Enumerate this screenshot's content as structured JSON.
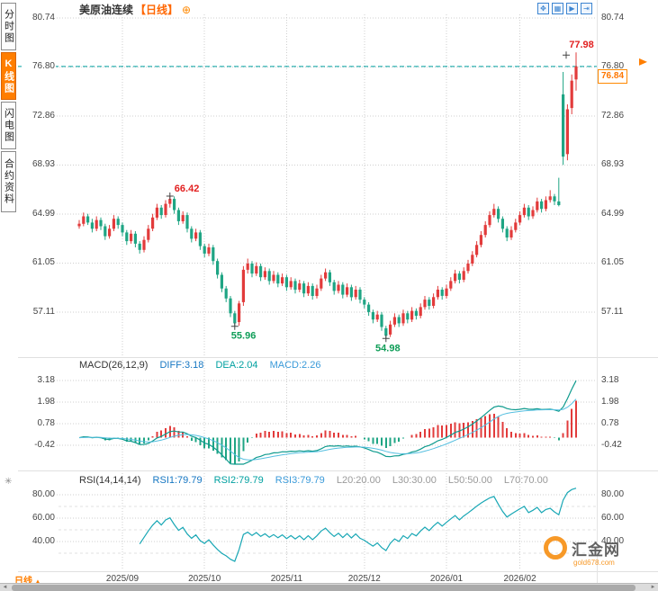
{
  "header": {
    "symbol": "美原油连续",
    "period": "【日线】",
    "settings_icon": "⊕",
    "toolbar": [
      {
        "name": "pan-tool-icon",
        "glyph": "✥"
      },
      {
        "name": "chart-type-icon",
        "glyph": "▦"
      },
      {
        "name": "zoom-tool-icon",
        "glyph": "▶"
      },
      {
        "name": "jump-latest-icon",
        "glyph": "⇥"
      }
    ]
  },
  "sidebar": {
    "tabs": [
      {
        "label": "分时图",
        "active": false
      },
      {
        "label": "K线图",
        "active": true
      },
      {
        "label": "闪电图",
        "active": false
      },
      {
        "label": "合约资料",
        "active": false
      }
    ]
  },
  "price_axis": {
    "ticks": [
      "80.74",
      "76.80",
      "72.86",
      "68.93",
      "64.99",
      "61.05",
      "57.11"
    ]
  },
  "current_price": {
    "value": "76.84"
  },
  "annotations": {
    "high": "77.98",
    "swing_high": "66.42",
    "swing_low1": "55.96",
    "swing_low2": "54.98"
  },
  "macd_panel": {
    "title": "MACD(26,12,9)",
    "diff": "DIFF:3.18",
    "dea": "DEA:2.04",
    "macd": "MACD:2.26",
    "ticks": [
      "3.18",
      "1.98",
      "0.78",
      "-0.42"
    ]
  },
  "rsi_panel": {
    "title": "RSI(14,14,14)",
    "rsi1": "RSI1:79.79",
    "rsi2": "RSI2:79.79",
    "rsi3": "RSI3:79.79",
    "l20": "L20:20.00",
    "l30": "L30:30.00",
    "l50": "L50:50.00",
    "l70": "L70:70.00",
    "ticks": [
      "80.00",
      "60.00",
      "40.00"
    ]
  },
  "time_axis": {
    "labels": [
      "2025/09",
      "2025/10",
      "2025/11",
      "2025/12",
      "2026/01",
      "2026/02"
    ],
    "period_label": "日线"
  },
  "watermark": {
    "site_name": "汇金网",
    "site_url": "gold678.com"
  },
  "colors": {
    "up": "#e23b3b",
    "down": "#1fa584",
    "accent_orange": "#ff7e00",
    "last_price_line": "#00a0a0",
    "grid": "#cfcfcf",
    "toolbar_blue": "#3d85d1",
    "annotation_red": "#e22020",
    "annotation_green": "#0e9d57"
  },
  "chart_data": {
    "type": "candlestick",
    "symbol": "美原油连续",
    "interval": "日线",
    "y_ticks": [
      80.74,
      76.8,
      72.86,
      68.93,
      64.99,
      61.05,
      57.11
    ],
    "macd_axis": [
      3.18,
      1.98,
      0.78,
      -0.42
    ],
    "rsi_axis": [
      80,
      60,
      40
    ],
    "rsi_levels": [
      70,
      50,
      30
    ],
    "x_month_ticks": [
      "2025/09",
      "2025/10",
      "2025/11",
      "2025/12",
      "2026/01",
      "2026/02"
    ],
    "month_tick_indices": [
      10,
      29,
      48,
      66,
      85,
      102
    ],
    "last_price": 76.84,
    "key_points": {
      "high": {
        "index": 115,
        "price": 77.98
      },
      "swing_high": {
        "index": 21,
        "price": 66.42
      },
      "low1": {
        "index": 36,
        "price": 55.96
      },
      "low2": {
        "index": 71,
        "price": 54.98
      }
    },
    "indicators": {
      "macd": {
        "params": [
          26,
          12,
          9
        ],
        "diff": 3.18,
        "dea": 2.04,
        "macd": 2.26
      },
      "rsi": {
        "params": [
          14,
          14,
          14
        ],
        "rsi1": 79.79,
        "rsi2": 79.79,
        "rsi3": 79.79,
        "levels": [
          20,
          30,
          50,
          70
        ]
      }
    },
    "candles": [
      [
        64.0,
        64.5,
        63.8,
        64.2
      ],
      [
        64.2,
        65.1,
        64.0,
        64.8
      ],
      [
        64.8,
        65.0,
        64.1,
        64.3
      ],
      [
        64.3,
        64.6,
        63.5,
        63.8
      ],
      [
        63.8,
        64.8,
        63.6,
        64.5
      ],
      [
        64.5,
        64.7,
        63.7,
        64.0
      ],
      [
        64.0,
        64.2,
        62.9,
        63.2
      ],
      [
        63.2,
        64.1,
        63.0,
        63.8
      ],
      [
        63.8,
        64.9,
        63.6,
        64.6
      ],
      [
        64.6,
        64.8,
        63.8,
        64.1
      ],
      [
        64.1,
        64.3,
        63.2,
        63.5
      ],
      [
        63.5,
        63.7,
        62.5,
        62.8
      ],
      [
        62.8,
        63.7,
        62.6,
        63.4
      ],
      [
        63.4,
        63.6,
        62.3,
        62.6
      ],
      [
        62.6,
        62.8,
        61.8,
        62.1
      ],
      [
        62.1,
        63.2,
        61.9,
        62.9
      ],
      [
        62.9,
        64.1,
        62.7,
        63.8
      ],
      [
        63.8,
        65.0,
        63.6,
        64.7
      ],
      [
        64.7,
        65.8,
        64.5,
        65.5
      ],
      [
        65.5,
        65.7,
        64.6,
        64.9
      ],
      [
        64.9,
        66.1,
        64.7,
        65.8
      ],
      [
        65.8,
        66.42,
        65.5,
        66.2
      ],
      [
        66.2,
        66.4,
        65.0,
        65.3
      ],
      [
        65.3,
        65.5,
        64.1,
        64.4
      ],
      [
        64.4,
        65.2,
        64.2,
        64.9
      ],
      [
        64.9,
        65.1,
        63.5,
        63.8
      ],
      [
        63.8,
        64.0,
        62.7,
        63.0
      ],
      [
        63.0,
        63.8,
        62.8,
        63.5
      ],
      [
        63.5,
        63.7,
        62.1,
        62.4
      ],
      [
        62.4,
        62.6,
        61.5,
        61.8
      ],
      [
        61.8,
        62.6,
        61.6,
        62.3
      ],
      [
        62.3,
        62.5,
        60.9,
        61.2
      ],
      [
        61.2,
        61.4,
        59.8,
        60.1
      ],
      [
        60.1,
        60.3,
        58.7,
        59.0
      ],
      [
        59.0,
        59.2,
        57.9,
        58.2
      ],
      [
        58.2,
        58.4,
        56.7,
        57.0
      ],
      [
        57.0,
        57.2,
        55.96,
        56.2
      ],
      [
        56.3,
        58.0,
        56.0,
        57.8
      ],
      [
        57.9,
        60.8,
        57.6,
        60.5
      ],
      [
        60.5,
        61.4,
        60.2,
        61.0
      ],
      [
        61.0,
        61.2,
        59.9,
        60.2
      ],
      [
        60.2,
        61.1,
        60.0,
        60.8
      ],
      [
        60.8,
        61.0,
        59.6,
        59.9
      ],
      [
        59.9,
        60.7,
        59.7,
        60.4
      ],
      [
        60.4,
        60.6,
        59.3,
        59.6
      ],
      [
        59.6,
        60.4,
        59.4,
        60.1
      ],
      [
        60.1,
        60.3,
        59.1,
        59.4
      ],
      [
        59.4,
        60.2,
        59.2,
        59.9
      ],
      [
        59.9,
        60.1,
        58.8,
        59.1
      ],
      [
        59.1,
        59.9,
        58.9,
        59.6
      ],
      [
        59.6,
        59.8,
        58.6,
        58.9
      ],
      [
        58.9,
        59.7,
        58.7,
        59.4
      ],
      [
        59.4,
        59.6,
        58.3,
        58.6
      ],
      [
        58.6,
        59.5,
        58.4,
        59.2
      ],
      [
        59.2,
        59.4,
        58.1,
        58.4
      ],
      [
        58.4,
        59.3,
        58.2,
        59.0
      ],
      [
        59.0,
        60.1,
        58.8,
        59.8
      ],
      [
        59.8,
        60.6,
        59.6,
        60.3
      ],
      [
        60.3,
        60.5,
        59.2,
        59.5
      ],
      [
        59.5,
        59.7,
        58.5,
        58.8
      ],
      [
        58.8,
        59.6,
        58.6,
        59.3
      ],
      [
        59.3,
        59.5,
        58.2,
        58.5
      ],
      [
        58.5,
        59.4,
        58.3,
        59.1
      ],
      [
        59.1,
        59.3,
        58.0,
        58.3
      ],
      [
        58.3,
        59.2,
        58.1,
        58.9
      ],
      [
        58.9,
        59.1,
        57.8,
        58.1
      ],
      [
        58.1,
        58.3,
        57.4,
        57.7
      ],
      [
        57.7,
        57.9,
        56.8,
        57.1
      ],
      [
        57.1,
        57.3,
        56.2,
        56.5
      ],
      [
        56.5,
        57.2,
        56.3,
        56.9
      ],
      [
        56.9,
        57.1,
        55.6,
        55.9
      ],
      [
        55.8,
        56.0,
        54.98,
        55.2
      ],
      [
        55.3,
        56.4,
        55.1,
        56.1
      ],
      [
        56.1,
        57.0,
        55.9,
        56.7
      ],
      [
        56.7,
        56.9,
        55.9,
        56.2
      ],
      [
        56.2,
        57.3,
        56.0,
        57.0
      ],
      [
        57.0,
        57.2,
        56.2,
        56.5
      ],
      [
        56.5,
        57.5,
        56.3,
        57.2
      ],
      [
        57.2,
        57.4,
        56.5,
        56.8
      ],
      [
        56.8,
        57.8,
        56.6,
        57.5
      ],
      [
        57.5,
        58.4,
        57.3,
        58.1
      ],
      [
        58.1,
        58.3,
        57.3,
        57.6
      ],
      [
        57.6,
        58.6,
        57.4,
        58.3
      ],
      [
        58.3,
        59.2,
        58.1,
        58.9
      ],
      [
        58.9,
        59.1,
        58.1,
        58.4
      ],
      [
        58.4,
        59.3,
        58.2,
        59.0
      ],
      [
        59.0,
        59.9,
        58.8,
        59.6
      ],
      [
        59.6,
        60.5,
        59.4,
        60.2
      ],
      [
        60.2,
        60.4,
        59.4,
        59.7
      ],
      [
        59.7,
        60.7,
        59.5,
        60.4
      ],
      [
        60.4,
        61.3,
        60.2,
        61.0
      ],
      [
        61.0,
        62.0,
        60.8,
        61.7
      ],
      [
        61.7,
        62.8,
        61.5,
        62.5
      ],
      [
        62.5,
        63.6,
        62.3,
        63.3
      ],
      [
        63.3,
        64.4,
        63.1,
        64.1
      ],
      [
        64.1,
        65.2,
        63.9,
        64.9
      ],
      [
        64.9,
        65.8,
        64.7,
        65.4
      ],
      [
        65.4,
        65.6,
        64.3,
        64.6
      ],
      [
        64.6,
        64.8,
        63.5,
        63.8
      ],
      [
        63.8,
        64.0,
        62.8,
        63.1
      ],
      [
        63.1,
        64.0,
        62.9,
        63.7
      ],
      [
        63.7,
        64.6,
        63.5,
        64.3
      ],
      [
        64.3,
        65.2,
        64.1,
        64.9
      ],
      [
        64.9,
        65.8,
        64.7,
        65.5
      ],
      [
        65.5,
        65.7,
        64.5,
        64.8
      ],
      [
        64.8,
        65.6,
        64.6,
        65.3
      ],
      [
        65.3,
        66.3,
        65.1,
        66.0
      ],
      [
        66.0,
        66.2,
        65.1,
        65.4
      ],
      [
        65.4,
        66.4,
        65.2,
        66.1
      ],
      [
        66.1,
        66.9,
        65.9,
        66.4
      ],
      [
        66.4,
        66.6,
        65.7,
        66.0
      ],
      [
        66.0,
        67.9,
        65.6,
        65.7
      ],
      [
        74.6,
        76.4,
        68.93,
        69.6
      ],
      [
        69.8,
        73.8,
        69.3,
        73.4
      ],
      [
        73.5,
        76.2,
        73.0,
        75.7
      ],
      [
        75.8,
        77.98,
        74.9,
        76.84
      ]
    ]
  }
}
